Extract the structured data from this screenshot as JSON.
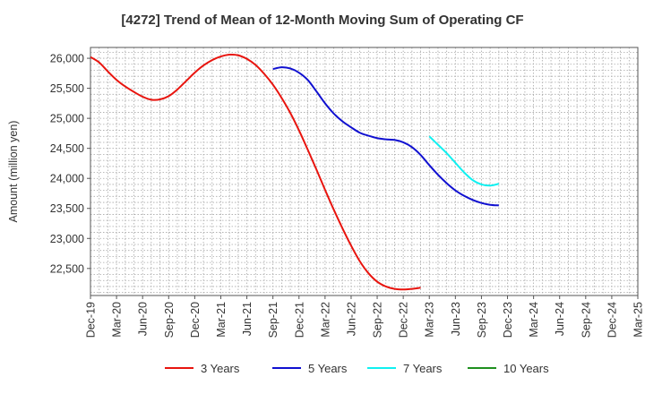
{
  "chart_data": {
    "type": "line",
    "title": "[4272]  Trend of Mean of 12-Month Moving Sum of Operating CF",
    "xlabel": "",
    "ylabel": "Amount (million yen)",
    "ylim": [
      22050,
      26180
    ],
    "yticks": [
      22500,
      23000,
      23500,
      24000,
      24500,
      25000,
      25500,
      26000
    ],
    "ytick_labels": [
      "22,500",
      "23,000",
      "23,500",
      "24,000",
      "24,500",
      "25,000",
      "25,500",
      "26,000"
    ],
    "x_start": "Dec-19",
    "quarters": 21,
    "xtick_labels": [
      "Dec-19",
      "Mar-20",
      "Jun-20",
      "Sep-20",
      "Dec-20",
      "Mar-21",
      "Jun-21",
      "Sep-21",
      "Dec-21",
      "Mar-22",
      "Jun-22",
      "Sep-22",
      "Dec-22",
      "Mar-23",
      "Jun-23",
      "Sep-23",
      "Dec-23",
      "Mar-24",
      "Jun-24",
      "Sep-24",
      "Dec-24",
      "Mar-25"
    ],
    "grid": true,
    "legend_position": "bottom",
    "series": [
      {
        "name": "3 Years",
        "color": "#e8140e",
        "points": [
          [
            0,
            26020
          ],
          [
            1,
            25930
          ],
          [
            2,
            25780
          ],
          [
            3,
            25640
          ],
          [
            4,
            25530
          ],
          [
            5,
            25440
          ],
          [
            6,
            25360
          ],
          [
            7,
            25310
          ],
          [
            8,
            25315
          ],
          [
            9,
            25370
          ],
          [
            10,
            25480
          ],
          [
            11,
            25620
          ],
          [
            12,
            25760
          ],
          [
            13,
            25880
          ],
          [
            14,
            25970
          ],
          [
            15,
            26030
          ],
          [
            16,
            26060
          ],
          [
            17,
            26050
          ],
          [
            18,
            25990
          ],
          [
            19,
            25890
          ],
          [
            20,
            25740
          ],
          [
            21,
            25560
          ],
          [
            22,
            25340
          ],
          [
            23,
            25090
          ],
          [
            24,
            24800
          ],
          [
            25,
            24480
          ],
          [
            26,
            24150
          ],
          [
            27,
            23810
          ],
          [
            28,
            23480
          ],
          [
            29,
            23170
          ],
          [
            30,
            22880
          ],
          [
            31,
            22620
          ],
          [
            32,
            22420
          ],
          [
            33,
            22280
          ],
          [
            34,
            22200
          ],
          [
            35,
            22160
          ],
          [
            36,
            22150
          ],
          [
            37,
            22160
          ],
          [
            38,
            22180
          ]
        ]
      },
      {
        "name": "5 Years",
        "color": "#1010d0",
        "points": [
          [
            21,
            25820
          ],
          [
            22,
            25850
          ],
          [
            23,
            25830
          ],
          [
            24,
            25760
          ],
          [
            25,
            25640
          ],
          [
            26,
            25450
          ],
          [
            27,
            25250
          ],
          [
            28,
            25080
          ],
          [
            29,
            24950
          ],
          [
            30,
            24850
          ],
          [
            31,
            24760
          ],
          [
            32,
            24710
          ],
          [
            33,
            24670
          ],
          [
            34,
            24650
          ],
          [
            35,
            24640
          ],
          [
            36,
            24600
          ],
          [
            37,
            24520
          ],
          [
            38,
            24390
          ],
          [
            39,
            24220
          ],
          [
            40,
            24060
          ],
          [
            41,
            23920
          ],
          [
            42,
            23800
          ],
          [
            43,
            23710
          ],
          [
            44,
            23640
          ],
          [
            45,
            23590
          ],
          [
            46,
            23560
          ],
          [
            47,
            23550
          ]
        ]
      },
      {
        "name": "7 Years",
        "color": "#10f0f0",
        "points": [
          [
            39,
            24700
          ],
          [
            40,
            24560
          ],
          [
            41,
            24420
          ],
          [
            42,
            24260
          ],
          [
            43,
            24100
          ],
          [
            44,
            23970
          ],
          [
            45,
            23900
          ],
          [
            46,
            23880
          ],
          [
            47,
            23910
          ]
        ]
      },
      {
        "name": "10 Years",
        "color": "#1e8f1e",
        "points": []
      }
    ]
  }
}
